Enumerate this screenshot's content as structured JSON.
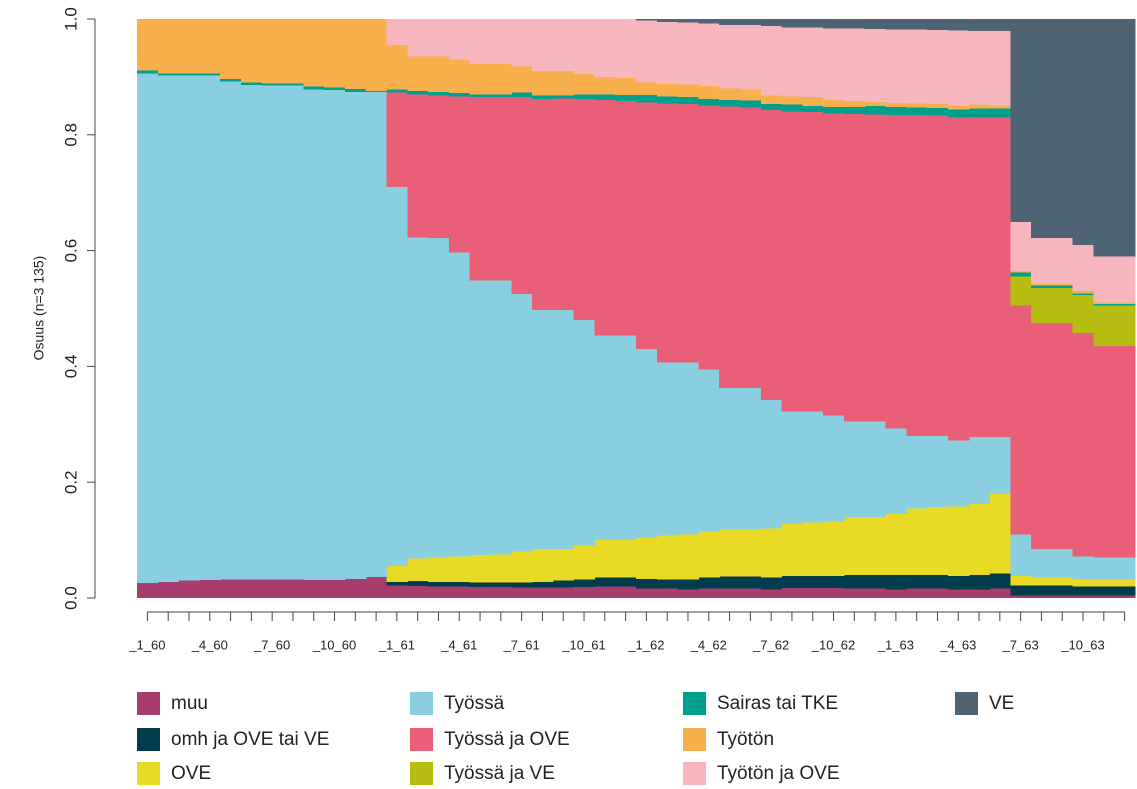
{
  "chart_data": {
    "type": "stacked-step",
    "y_label": "Osuus (n=3 135)",
    "categories": [
      "_1_60",
      null,
      null,
      "_4_60",
      null,
      null,
      "_7_60",
      null,
      null,
      "_10_60",
      null,
      null,
      "_1_61",
      null,
      null,
      "_4_61",
      null,
      null,
      "_7_61",
      null,
      null,
      "_10_61",
      null,
      null,
      "_1_62",
      null,
      null,
      "_4_62",
      null,
      null,
      "_7_62",
      null,
      null,
      "_10_62",
      null,
      null,
      "_1_63",
      null,
      null,
      "_4_63",
      null,
      null,
      "_7_63",
      null,
      null,
      "_10_63",
      null,
      null
    ],
    "ylim": [
      0,
      1
    ],
    "yticks": [
      {
        "value": 0,
        "label": "0.0"
      },
      0.2,
      0.4,
      0.6,
      0.8,
      {
        "value": 1,
        "label": "1.0"
      }
    ],
    "series": [
      {
        "name": "muu",
        "color": "#a63d6e",
        "values": [
          0.026,
          0.028,
          0.03,
          0.031,
          0.032,
          0.032,
          0.032,
          0.032,
          0.031,
          0.031,
          0.033,
          0.036,
          0.022,
          0.021,
          0.02,
          0.02,
          0.019,
          0.019,
          0.018,
          0.018,
          0.018,
          0.019,
          0.02,
          0.02,
          0.016,
          0.016,
          0.015,
          0.016,
          0.016,
          0.016,
          0.015,
          0.017,
          0.017,
          0.017,
          0.016,
          0.016,
          0.015,
          0.016,
          0.016,
          0.015,
          0.015,
          0.016,
          0.004,
          0.004,
          0.004,
          0.004,
          0.004,
          0.004
        ]
      },
      {
        "name": "omh ja OVE tai VE",
        "color": "#003c4b",
        "values": [
          0,
          0,
          0,
          0,
          0,
          0,
          0,
          0,
          0,
          0,
          0,
          0,
          0.006,
          0.008,
          0.008,
          0.008,
          0.008,
          0.008,
          0.009,
          0.01,
          0.012,
          0.013,
          0.015,
          0.015,
          0.017,
          0.016,
          0.017,
          0.019,
          0.021,
          0.021,
          0.02,
          0.021,
          0.021,
          0.021,
          0.024,
          0.024,
          0.025,
          0.024,
          0.024,
          0.023,
          0.025,
          0.026,
          0.018,
          0.018,
          0.018,
          0.016,
          0.016,
          0.016
        ]
      },
      {
        "name": "OVE",
        "color": "#e8d924",
        "values": [
          0,
          0,
          0,
          0,
          0,
          0,
          0,
          0,
          0,
          0,
          0,
          0,
          0.027,
          0.039,
          0.042,
          0.044,
          0.047,
          0.048,
          0.053,
          0.057,
          0.055,
          0.059,
          0.065,
          0.065,
          0.071,
          0.076,
          0.078,
          0.08,
          0.081,
          0.081,
          0.085,
          0.09,
          0.092,
          0.094,
          0.1,
          0.1,
          0.105,
          0.115,
          0.117,
          0.12,
          0.122,
          0.138,
          0.016,
          0.013,
          0.013,
          0.012,
          0.012,
          0.012
        ]
      },
      {
        "name": "Työssä",
        "color": "#8acfe0",
        "values": [
          0.88,
          0.874,
          0.872,
          0.871,
          0.86,
          0.854,
          0.853,
          0.853,
          0.847,
          0.846,
          0.841,
          0.838,
          0.655,
          0.555,
          0.552,
          0.525,
          0.474,
          0.473,
          0.445,
          0.412,
          0.412,
          0.389,
          0.353,
          0.353,
          0.326,
          0.299,
          0.297,
          0.28,
          0.245,
          0.245,
          0.222,
          0.194,
          0.192,
          0.183,
          0.165,
          0.165,
          0.148,
          0.125,
          0.123,
          0.114,
          0.116,
          0.098,
          0.072,
          0.05,
          0.05,
          0.04,
          0.038,
          0.038
        ]
      },
      {
        "name": "Työssä ja OVE",
        "color": "#ea5f78",
        "values": [
          0,
          0,
          0,
          0,
          0,
          0,
          0,
          0,
          0,
          0,
          0,
          0,
          0.163,
          0.247,
          0.246,
          0.269,
          0.317,
          0.317,
          0.34,
          0.365,
          0.366,
          0.382,
          0.407,
          0.405,
          0.426,
          0.447,
          0.446,
          0.456,
          0.486,
          0.484,
          0.501,
          0.518,
          0.517,
          0.522,
          0.531,
          0.53,
          0.541,
          0.554,
          0.553,
          0.558,
          0.552,
          0.552,
          0.395,
          0.39,
          0.39,
          0.386,
          0.365,
          0.365
        ]
      },
      {
        "name": "Työssä ja VE",
        "color": "#b5bd10",
        "values": [
          0,
          0,
          0,
          0,
          0,
          0,
          0,
          0,
          0,
          0,
          0,
          0,
          0,
          0,
          0,
          0,
          0,
          0,
          0,
          0,
          0,
          0,
          0,
          0,
          0,
          0,
          0,
          0,
          0,
          0,
          0,
          0,
          0,
          0,
          0,
          0,
          0,
          0,
          0,
          0,
          0,
          0,
          0.05,
          0.06,
          0.06,
          0.065,
          0.07,
          0.07
        ]
      },
      {
        "name": "Sairas tai TKE",
        "color": "#00a08f",
        "values": [
          0.005,
          0.004,
          0.004,
          0.004,
          0.004,
          0.004,
          0.004,
          0.004,
          0.005,
          0.005,
          0.005,
          0.002,
          0.005,
          0.006,
          0.006,
          0.006,
          0.005,
          0.005,
          0.008,
          0.006,
          0.005,
          0.008,
          0.01,
          0.011,
          0.013,
          0.012,
          0.012,
          0.011,
          0.011,
          0.012,
          0.01,
          0.012,
          0.011,
          0.011,
          0.012,
          0.015,
          0.014,
          0.013,
          0.013,
          0.014,
          0.015,
          0.015,
          0.007,
          0.005,
          0.005,
          0.003,
          0.003,
          0.003
        ]
      },
      {
        "name": "Työtön",
        "color": "#f7b04c",
        "values": [
          0.089,
          0.094,
          0.094,
          0.094,
          0.104,
          0.11,
          0.111,
          0.111,
          0.117,
          0.118,
          0.121,
          0.124,
          0.077,
          0.059,
          0.061,
          0.058,
          0.052,
          0.052,
          0.045,
          0.042,
          0.042,
          0.035,
          0.03,
          0.029,
          0.021,
          0.022,
          0.022,
          0.022,
          0.02,
          0.019,
          0.015,
          0.014,
          0.015,
          0.012,
          0.01,
          0.007,
          0.007,
          0.007,
          0.007,
          0.006,
          0.007,
          0.006,
          0.003,
          0.002,
          0.002,
          0.004,
          0.002,
          0.002
        ]
      },
      {
        "name": "Työtön ja OVE",
        "color": "#f7b5bd",
        "values": [
          0,
          0,
          0,
          0,
          0,
          0,
          0,
          0,
          0,
          0,
          0,
          0,
          0.045,
          0.065,
          0.065,
          0.07,
          0.078,
          0.078,
          0.082,
          0.09,
          0.09,
          0.095,
          0.1,
          0.102,
          0.107,
          0.107,
          0.107,
          0.108,
          0.11,
          0.112,
          0.12,
          0.119,
          0.12,
          0.124,
          0.126,
          0.126,
          0.127,
          0.128,
          0.128,
          0.13,
          0.127,
          0.128,
          0.084,
          0.08,
          0.08,
          0.08,
          0.08,
          0.08
        ]
      },
      {
        "name": "VE",
        "color": "#4e6475",
        "values": [
          0,
          0,
          0,
          0,
          0,
          0,
          0,
          0,
          0,
          0,
          0,
          0,
          0,
          0,
          0,
          0,
          0,
          0,
          0,
          0,
          0,
          0,
          0,
          0,
          0.003,
          0.005,
          0.006,
          0.008,
          0.01,
          0.01,
          0.012,
          0.015,
          0.015,
          0.016,
          0.016,
          0.017,
          0.018,
          0.018,
          0.019,
          0.02,
          0.021,
          0.021,
          0.351,
          0.378,
          0.378,
          0.39,
          0.41,
          0.41
        ]
      }
    ]
  }
}
